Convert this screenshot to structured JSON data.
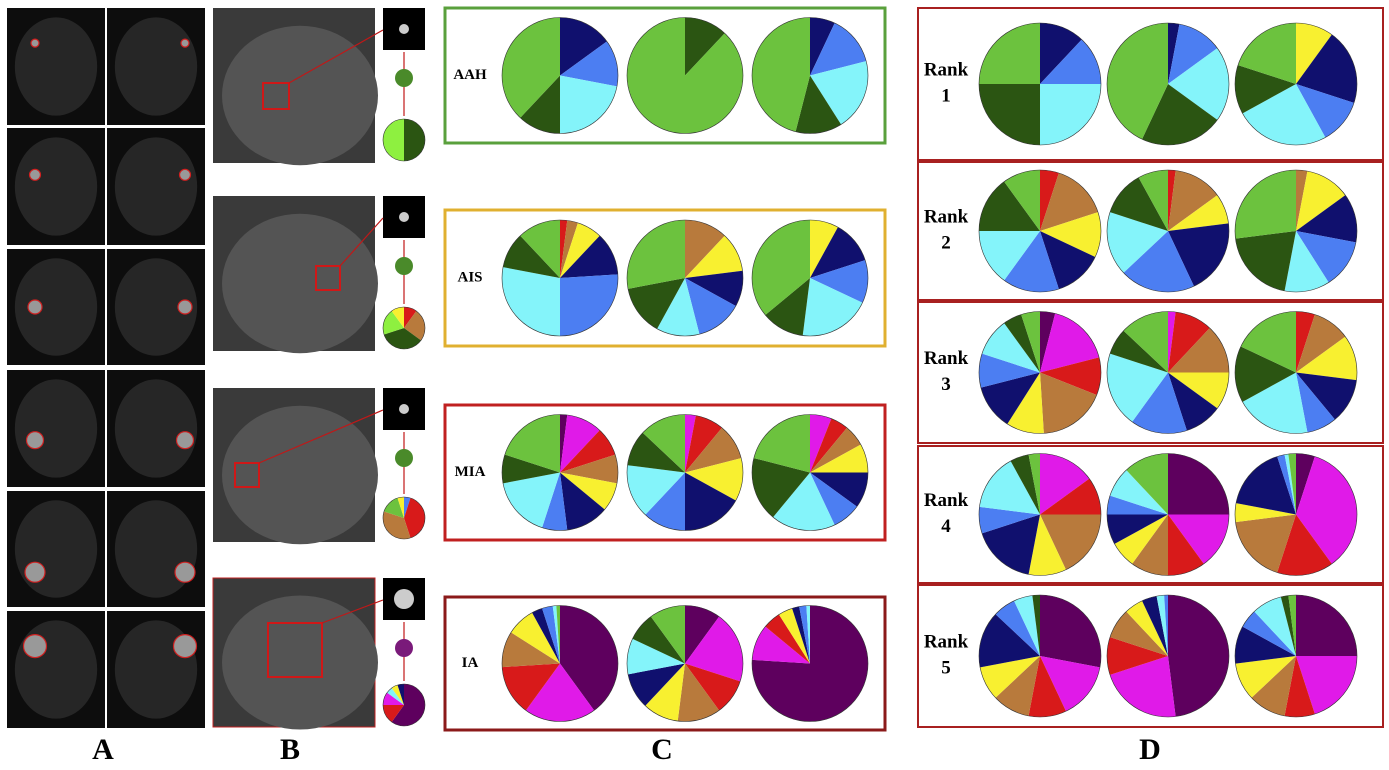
{
  "panel_labels": [
    "A",
    "B",
    "C",
    "D"
  ],
  "panel_b": {
    "pies": [
      {
        "values": [
          50,
          50
        ],
        "colors": [
          "#2b5512",
          "#8ef040"
        ]
      },
      {
        "values": [
          10,
          25,
          35,
          20,
          10
        ],
        "colors": [
          "#d81a1a",
          "#b87a3c",
          "#2b5512",
          "#8ef040",
          "#f8f030"
        ]
      },
      {
        "values": [
          5,
          40,
          35,
          15,
          5
        ],
        "colors": [
          "#4c7ef2",
          "#d81a1a",
          "#b87a3c",
          "#6cc23e",
          "#f8f030"
        ]
      },
      {
        "values": [
          60,
          15,
          10,
          5,
          5,
          5
        ],
        "colors": [
          "#5e005e",
          "#d81a1a",
          "#e01ae8",
          "#84f4fa",
          "#f8f030",
          "#10106e"
        ]
      }
    ]
  },
  "panel_c": {
    "rows": [
      {
        "label": "AAH",
        "border": "#5aa03c",
        "pies": [
          {
            "values": [
              15,
              13,
              22,
              12,
              38
            ],
            "colors": [
              "#10106e",
              "#4c7ef2",
              "#84f4fa",
              "#2b5512",
              "#6cc23e"
            ]
          },
          {
            "values": [
              12,
              88
            ],
            "colors": [
              "#2b5512",
              "#6cc23e"
            ]
          },
          {
            "values": [
              7,
              14,
              20,
              13,
              46
            ],
            "colors": [
              "#10106e",
              "#4c7ef2",
              "#84f4fa",
              "#2b5512",
              "#6cc23e"
            ]
          }
        ]
      },
      {
        "label": "AIS",
        "border": "#e0b030",
        "pies": [
          {
            "values": [
              2,
              3,
              7,
              12,
              26,
              28,
              10,
              12
            ],
            "colors": [
              "#d81a1a",
              "#b87a3c",
              "#f8f030",
              "#10106e",
              "#4c7ef2",
              "#84f4fa",
              "#2b5512",
              "#6cc23e"
            ]
          },
          {
            "values": [
              12,
              11,
              10,
              13,
              12,
              14,
              28
            ],
            "colors": [
              "#b87a3c",
              "#f8f030",
              "#10106e",
              "#4c7ef2",
              "#84f4fa",
              "#2b5512",
              "#6cc23e"
            ]
          },
          {
            "values": [
              8,
              12,
              12,
              20,
              12,
              36
            ],
            "colors": [
              "#f8f030",
              "#10106e",
              "#4c7ef2",
              "#84f4fa",
              "#2b5512",
              "#6cc23e"
            ]
          }
        ]
      },
      {
        "label": "MIA",
        "border": "#c02020",
        "pies": [
          {
            "values": [
              2,
              10,
              8,
              8,
              8,
              12,
              7,
              17,
              8,
              20
            ],
            "colors": [
              "#5e005e",
              "#e01ae8",
              "#d81a1a",
              "#b87a3c",
              "#f8f030",
              "#10106e",
              "#4c7ef2",
              "#84f4fa",
              "#2b5512",
              "#6cc23e"
            ]
          },
          {
            "values": [
              3,
              8,
              10,
              12,
              17,
              12,
              15,
              10,
              13
            ],
            "colors": [
              "#e01ae8",
              "#d81a1a",
              "#b87a3c",
              "#f8f030",
              "#10106e",
              "#4c7ef2",
              "#84f4fa",
              "#2b5512",
              "#6cc23e"
            ]
          },
          {
            "values": [
              6,
              5,
              6,
              8,
              10,
              8,
              18,
              18,
              21
            ],
            "colors": [
              "#e01ae8",
              "#d81a1a",
              "#b87a3c",
              "#f8f030",
              "#10106e",
              "#4c7ef2",
              "#84f4fa",
              "#2b5512",
              "#6cc23e"
            ]
          }
        ]
      },
      {
        "label": "IA",
        "border": "#8b1a1a",
        "pies": [
          {
            "values": [
              40,
              20,
              14,
              10,
              8,
              3,
              3,
              1,
              1
            ],
            "colors": [
              "#5e005e",
              "#e01ae8",
              "#d81a1a",
              "#b87a3c",
              "#f8f030",
              "#10106e",
              "#4c7ef2",
              "#84f4fa",
              "#6cc23e"
            ]
          },
          {
            "values": [
              10,
              20,
              10,
              12,
              10,
              10,
              10,
              8,
              10
            ],
            "colors": [
              "#5e005e",
              "#e01ae8",
              "#d81a1a",
              "#b87a3c",
              "#f8f030",
              "#10106e",
              "#84f4fa",
              "#2b5512",
              "#6cc23e"
            ]
          },
          {
            "values": [
              76,
              10,
              5,
              4,
              2,
              2,
              1
            ],
            "colors": [
              "#5e005e",
              "#e01ae8",
              "#d81a1a",
              "#f8f030",
              "#10106e",
              "#4c7ef2",
              "#84f4fa"
            ]
          }
        ]
      }
    ]
  },
  "panel_d": {
    "rows": [
      {
        "label": "Rank",
        "number": 1,
        "pies": [
          {
            "values": [
              12,
              13,
              25,
              25,
              25
            ],
            "colors": [
              "#10106e",
              "#4c7ef2",
              "#84f4fa",
              "#2b5512",
              "#6cc23e"
            ]
          },
          {
            "values": [
              3,
              12,
              20,
              22,
              43
            ],
            "colors": [
              "#10106e",
              "#4c7ef2",
              "#84f4fa",
              "#2b5512",
              "#6cc23e"
            ]
          },
          {
            "values": [
              10,
              20,
              12,
              25,
              13,
              20
            ],
            "colors": [
              "#f8f030",
              "#10106e",
              "#4c7ef2",
              "#84f4fa",
              "#2b5512",
              "#6cc23e"
            ]
          }
        ]
      },
      {
        "label": "Rank",
        "number": 2,
        "pies": [
          {
            "values": [
              5,
              15,
              12,
              13,
              15,
              15,
              15,
              10
            ],
            "colors": [
              "#d81a1a",
              "#b87a3c",
              "#f8f030",
              "#10106e",
              "#4c7ef2",
              "#84f4fa",
              "#2b5512",
              "#6cc23e"
            ]
          },
          {
            "values": [
              2,
              13,
              8,
              20,
              20,
              17,
              12,
              8
            ],
            "colors": [
              "#d81a1a",
              "#b87a3c",
              "#f8f030",
              "#10106e",
              "#4c7ef2",
              "#84f4fa",
              "#2b5512",
              "#6cc23e"
            ]
          },
          {
            "values": [
              3,
              12,
              13,
              13,
              12,
              20,
              27
            ],
            "colors": [
              "#b87a3c",
              "#f8f030",
              "#10106e",
              "#4c7ef2",
              "#84f4fa",
              "#2b5512",
              "#6cc23e"
            ]
          }
        ]
      },
      {
        "label": "Rank",
        "number": 3,
        "pies": [
          {
            "values": [
              4,
              17,
              10,
              18,
              10,
              12,
              9,
              10,
              5,
              5
            ],
            "colors": [
              "#5e005e",
              "#e01ae8",
              "#d81a1a",
              "#b87a3c",
              "#f8f030",
              "#10106e",
              "#4c7ef2",
              "#84f4fa",
              "#2b5512",
              "#6cc23e"
            ]
          },
          {
            "values": [
              2,
              10,
              13,
              10,
              10,
              15,
              20,
              7,
              13
            ],
            "colors": [
              "#e01ae8",
              "#d81a1a",
              "#b87a3c",
              "#f8f030",
              "#10106e",
              "#4c7ef2",
              "#84f4fa",
              "#2b5512",
              "#6cc23e"
            ]
          },
          {
            "values": [
              5,
              10,
              12,
              12,
              8,
              20,
              15,
              18
            ],
            "colors": [
              "#d81a1a",
              "#b87a3c",
              "#f8f030",
              "#10106e",
              "#4c7ef2",
              "#84f4fa",
              "#2b5512",
              "#6cc23e"
            ]
          }
        ]
      },
      {
        "label": "Rank",
        "number": 4,
        "pies": [
          {
            "values": [
              15,
              10,
              18,
              10,
              17,
              7,
              15,
              5,
              3
            ],
            "colors": [
              "#e01ae8",
              "#d81a1a",
              "#b87a3c",
              "#f8f030",
              "#10106e",
              "#4c7ef2",
              "#84f4fa",
              "#2b5512",
              "#6cc23e"
            ]
          },
          {
            "values": [
              25,
              15,
              10,
              10,
              7,
              8,
              5,
              8,
              12
            ],
            "colors": [
              "#5e005e",
              "#e01ae8",
              "#d81a1a",
              "#b87a3c",
              "#f8f030",
              "#10106e",
              "#4c7ef2",
              "#84f4fa",
              "#6cc23e"
            ]
          },
          {
            "values": [
              5,
              35,
              15,
              18,
              5,
              17,
              2,
              1,
              2
            ],
            "colors": [
              "#5e005e",
              "#e01ae8",
              "#d81a1a",
              "#b87a3c",
              "#f8f030",
              "#10106e",
              "#4c7ef2",
              "#84f4fa",
              "#6cc23e"
            ]
          }
        ]
      },
      {
        "label": "Rank",
        "number": 5,
        "pies": [
          {
            "values": [
              28,
              15,
              10,
              10,
              9,
              15,
              6,
              5,
              2
            ],
            "colors": [
              "#5e005e",
              "#e01ae8",
              "#d81a1a",
              "#b87a3c",
              "#f8f030",
              "#10106e",
              "#4c7ef2",
              "#84f4fa",
              "#2b5512"
            ]
          },
          {
            "values": [
              48,
              22,
              10,
              8,
              5,
              4,
              2,
              1
            ],
            "colors": [
              "#5e005e",
              "#e01ae8",
              "#d81a1a",
              "#b87a3c",
              "#f8f030",
              "#10106e",
              "#84f4fa",
              "#4c7ef2"
            ]
          },
          {
            "values": [
              25,
              20,
              8,
              10,
              10,
              10,
              5,
              8,
              2,
              2
            ],
            "colors": [
              "#5e005e",
              "#e01ae8",
              "#d81a1a",
              "#b87a3c",
              "#f8f030",
              "#10106e",
              "#4c7ef2",
              "#84f4fa",
              "#2b5512",
              "#6cc23e"
            ]
          }
        ]
      }
    ]
  }
}
